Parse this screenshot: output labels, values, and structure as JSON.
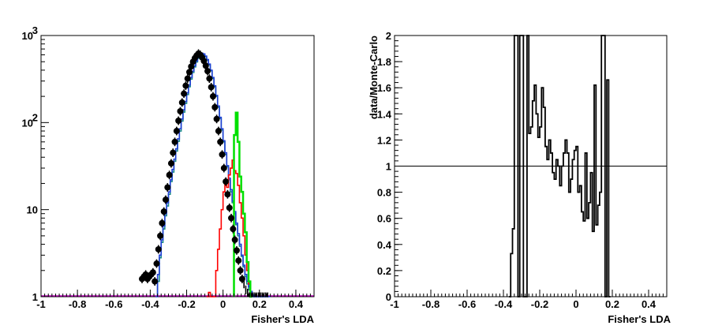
{
  "chart_data": [
    {
      "type": "histogram",
      "xlabel": "Fisher's LDA",
      "ylabel": "",
      "xlim": [
        -1,
        0.5
      ],
      "ylim": [
        1,
        1000
      ],
      "yscale": "log",
      "x_ticks": [
        "-1",
        "-0.8",
        "-0.6",
        "-0.4",
        "-0.2",
        "0",
        "0.2",
        "0.4"
      ],
      "y_ticks": [
        {
          "value": 1,
          "base": "1",
          "exp": ""
        },
        {
          "value": 10,
          "base": "10",
          "exp": ""
        },
        {
          "value": 100,
          "base": "10",
          "exp": "2"
        },
        {
          "value": 1000,
          "base": "10",
          "exp": "3"
        }
      ],
      "colors": {
        "data": "#000000",
        "total": "#1f3fd6",
        "teal": "#1a8a8a",
        "green": "#00e000",
        "red": "#ff0000",
        "magenta": "#b400b4"
      },
      "series": [
        {
          "id": "data",
          "style": "points",
          "x": [
            -0.445,
            -0.435,
            -0.425,
            -0.415,
            -0.405,
            -0.395,
            -0.385,
            -0.375,
            -0.365,
            -0.355,
            -0.345,
            -0.335,
            -0.325,
            -0.315,
            -0.305,
            -0.295,
            -0.285,
            -0.275,
            -0.265,
            -0.255,
            -0.245,
            -0.235,
            -0.225,
            -0.215,
            -0.205,
            -0.195,
            -0.185,
            -0.175,
            -0.165,
            -0.155,
            -0.145,
            -0.135,
            -0.125,
            -0.115,
            -0.105,
            -0.095,
            -0.085,
            -0.075,
            -0.065,
            -0.055,
            -0.045,
            -0.035,
            -0.025,
            -0.015,
            -0.005,
            0.005,
            0.015,
            0.025,
            0.035,
            0.045,
            0.055,
            0.065,
            0.075,
            0.085,
            0.095,
            0.105,
            0.115,
            0.125,
            0.135,
            0.145,
            0.155,
            0.165,
            0.175,
            0.185,
            0.195,
            0.205,
            0.215,
            0.225,
            0.235,
            0.245
          ],
          "y": [
            1.6,
            1.7,
            1.8,
            1.6,
            1.7,
            1.8,
            1.9,
            1.5,
            2.4,
            3.5,
            5.0,
            7.0,
            9.5,
            13,
            18,
            25,
            34,
            45,
            60,
            80,
            105,
            135,
            170,
            215,
            265,
            320,
            380,
            440,
            500,
            550,
            590,
            620,
            600,
            560,
            510,
            450,
            390,
            320,
            255,
            200,
            150,
            110,
            80,
            60,
            43,
            30,
            21,
            15,
            10.5,
            8.0,
            6.0,
            4.5,
            3.4,
            2.6,
            2.0,
            1.6,
            1.4,
            1.2,
            1.1,
            1.0,
            1.0,
            1.0,
            1.0,
            1.0,
            1.0,
            1.0,
            1.0,
            1.0,
            1.0,
            1.0
          ]
        },
        {
          "id": "mc-total",
          "style": "step",
          "x": [
            -0.37,
            -0.36,
            -0.35,
            -0.34,
            -0.33,
            -0.32,
            -0.31,
            -0.3,
            -0.29,
            -0.28,
            -0.27,
            -0.26,
            -0.25,
            -0.24,
            -0.23,
            -0.22,
            -0.21,
            -0.2,
            -0.19,
            -0.18,
            -0.17,
            -0.16,
            -0.15,
            -0.14,
            -0.13,
            -0.12,
            -0.11,
            -0.1,
            -0.09,
            -0.08,
            -0.07,
            -0.06,
            -0.05,
            -0.04,
            -0.03,
            -0.02,
            -0.01,
            0.0,
            0.01,
            0.02,
            0.03,
            0.04,
            0.05,
            0.06,
            0.07,
            0.08,
            0.09,
            0.1,
            0.11,
            0.12,
            0.13,
            0.14,
            0.15,
            0.16,
            0.17,
            0.18,
            0.19,
            0.2,
            0.21,
            0.22,
            0.23,
            0.24,
            0.25,
            0.26
          ],
          "y": [
            1.0,
            1.8,
            3.0,
            4.5,
            6.5,
            9.0,
            12,
            16,
            22,
            29,
            38,
            50,
            65,
            85,
            110,
            140,
            175,
            220,
            270,
            330,
            390,
            450,
            510,
            560,
            600,
            625,
            615,
            580,
            530,
            470,
            400,
            330,
            265,
            205,
            155,
            115,
            85,
            62,
            45,
            32,
            23,
            17,
            12.5,
            9.5,
            7.0,
            5.3,
            4.0,
            3.0,
            2.3,
            1.8,
            1.5,
            1.3,
            1.15,
            1.05,
            1.0,
            1.0,
            1.0,
            1.0,
            1.0,
            1.0,
            1.0,
            1.0,
            1.0
          ]
        },
        {
          "id": "mc-teal",
          "style": "step",
          "x": [
            -0.36,
            -0.35,
            -0.34,
            -0.33,
            -0.32,
            -0.31,
            -0.3,
            -0.29,
            -0.28,
            -0.27,
            -0.26,
            -0.25,
            -0.24,
            -0.23,
            -0.22,
            -0.21,
            -0.2,
            -0.19,
            -0.18,
            -0.17,
            -0.16,
            -0.15,
            -0.14,
            -0.13,
            -0.12,
            -0.11,
            -0.1,
            -0.09,
            -0.08,
            -0.07,
            -0.06,
            -0.05,
            -0.04,
            -0.03,
            -0.02,
            -0.01,
            0.0,
            0.01,
            0.02,
            0.03,
            0.04,
            0.05,
            0.06,
            0.07,
            0.08,
            0.09,
            0.1,
            0.11,
            0.12,
            0.13,
            0.14,
            0.15,
            0.16,
            0.17,
            0.18,
            0.19,
            0.2,
            0.21,
            0.22,
            0.23,
            0.24,
            0.25
          ],
          "y": [
            1.5,
            2.8,
            4.2,
            6.0,
            8.5,
            11,
            15,
            21,
            27,
            36,
            47,
            61,
            80,
            104,
            132,
            166,
            210,
            258,
            316,
            376,
            436,
            496,
            546,
            588,
            612,
            604,
            570,
            520,
            460,
            392,
            322,
            258,
            200,
            150,
            112,
            82,
            60,
            43,
            31,
            22,
            16,
            12,
            9.0,
            6.7,
            5.0,
            3.8,
            2.9,
            2.2,
            1.7,
            1.4,
            1.2,
            1.1,
            1.0,
            1.0,
            1.0,
            1.0,
            1.0,
            1.0,
            1.0,
            1.0,
            1.0
          ]
        },
        {
          "id": "mc-green",
          "style": "step",
          "x": [
            0.06,
            0.07,
            0.08,
            0.09,
            0.1,
            0.11,
            0.12,
            0.13,
            0.14,
            0.15
          ],
          "y": [
            72,
            130,
            60,
            24,
            16,
            9.0,
            5.5,
            2.5,
            1.5,
            1.0
          ]
        },
        {
          "id": "mc-red",
          "style": "step",
          "x": [
            -0.09,
            -0.08,
            -0.07,
            -0.06,
            -0.05,
            -0.04,
            -0.03,
            -0.02,
            -0.01,
            0.0,
            0.01,
            0.02,
            0.03,
            0.04,
            0.05,
            0.06,
            0.07,
            0.08,
            0.09,
            0.1,
            0.11,
            0.12,
            0.13,
            0.14,
            0.15
          ],
          "y": [
            1.0,
            1.12,
            1.0,
            1.0,
            1.0,
            2.0,
            3.5,
            6.0,
            10,
            16,
            22,
            18,
            25,
            30,
            37,
            28,
            26,
            19,
            12,
            8,
            5,
            3,
            2,
            1.4,
            1.0
          ]
        },
        {
          "id": "mc-magenta",
          "style": "step",
          "x": [
            -1.0,
            0.5
          ],
          "y": [
            1.0,
            1.0
          ]
        }
      ]
    },
    {
      "type": "histogram",
      "xlabel": "Fisher's LDA",
      "ylabel": "data/Monte-Carlo",
      "xlim": [
        -1,
        0.5
      ],
      "ylim": [
        0,
        2
      ],
      "reference_line": 1,
      "x_ticks": [
        "-1",
        "-0.8",
        "-0.6",
        "-0.4",
        "-0.2",
        "0",
        "0.2",
        "0.4"
      ],
      "y_ticks": [
        "0",
        "0.2",
        "0.4",
        "0.6",
        "0.8",
        "1",
        "1.2",
        "1.4",
        "1.6",
        "1.8",
        "2"
      ],
      "series": [
        {
          "id": "ratio",
          "style": "step",
          "x_start": -0.37,
          "bin_width": 0.01,
          "y": [
            0.0,
            0.33,
            0.52,
            2.0,
            2.0,
            0.0,
            2.0,
            2.0,
            0.0,
            0.0,
            2.0,
            1.25,
            1.3,
            1.5,
            1.62,
            1.4,
            1.22,
            1.3,
            1.6,
            1.45,
            1.15,
            1.05,
            1.2,
            1.1,
            0.95,
            0.9,
            1.05,
            1.0,
            0.85,
            1.0,
            1.1,
            1.2,
            1.1,
            0.8,
            0.9,
            1.05,
            1.12,
            1.15,
            0.8,
            0.85,
            0.65,
            0.58,
            1.1,
            0.6,
            0.72,
            0.95,
            0.5,
            1.62,
            0.55,
            0.7,
            0.8,
            2.0,
            2.0,
            0.0,
            1.66,
            0.0
          ]
        }
      ]
    }
  ]
}
